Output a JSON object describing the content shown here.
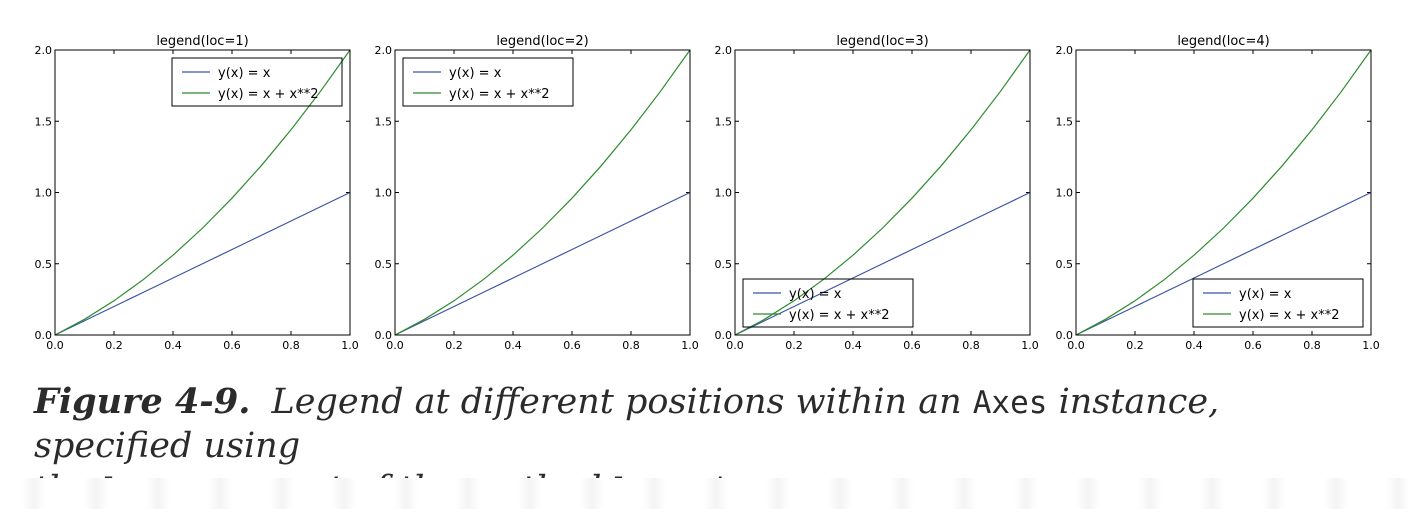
{
  "chart_data": [
    {
      "type": "line",
      "title": "legend(loc=1)",
      "legend_loc": "upper-right",
      "xlim": [
        0,
        1
      ],
      "ylim": [
        0,
        2
      ],
      "xticks": [
        "0.0",
        "0.2",
        "0.4",
        "0.6",
        "0.8",
        "1.0"
      ],
      "yticks": [
        "0.0",
        "0.5",
        "1.0",
        "1.5",
        "2.0"
      ],
      "grid": false,
      "x": [
        0,
        0.1,
        0.2,
        0.3,
        0.4,
        0.5,
        0.6,
        0.7,
        0.8,
        0.9,
        1.0
      ],
      "series": [
        {
          "name": "y(x) = x",
          "color": "#3b54a3",
          "values": [
            0,
            0.1,
            0.2,
            0.3,
            0.4,
            0.5,
            0.6,
            0.7,
            0.8,
            0.9,
            1.0
          ]
        },
        {
          "name": "y(x) = x + x**2",
          "color": "#2e8b2e",
          "values": [
            0,
            0.11,
            0.24,
            0.39,
            0.56,
            0.75,
            0.96,
            1.19,
            1.44,
            1.71,
            2.0
          ]
        }
      ]
    },
    {
      "type": "line",
      "title": "legend(loc=2)",
      "legend_loc": "upper-left",
      "xlim": [
        0,
        1
      ],
      "ylim": [
        0,
        2
      ],
      "xticks": [
        "0.0",
        "0.2",
        "0.4",
        "0.6",
        "0.8",
        "1.0"
      ],
      "yticks": [
        "0.0",
        "0.5",
        "1.0",
        "1.5",
        "2.0"
      ],
      "grid": false,
      "x": [
        0,
        0.1,
        0.2,
        0.3,
        0.4,
        0.5,
        0.6,
        0.7,
        0.8,
        0.9,
        1.0
      ],
      "series": [
        {
          "name": "y(x) = x",
          "color": "#3b54a3",
          "values": [
            0,
            0.1,
            0.2,
            0.3,
            0.4,
            0.5,
            0.6,
            0.7,
            0.8,
            0.9,
            1.0
          ]
        },
        {
          "name": "y(x) = x + x**2",
          "color": "#2e8b2e",
          "values": [
            0,
            0.11,
            0.24,
            0.39,
            0.56,
            0.75,
            0.96,
            1.19,
            1.44,
            1.71,
            2.0
          ]
        }
      ]
    },
    {
      "type": "line",
      "title": "legend(loc=3)",
      "legend_loc": "lower-left",
      "xlim": [
        0,
        1
      ],
      "ylim": [
        0,
        2
      ],
      "xticks": [
        "0.0",
        "0.2",
        "0.4",
        "0.6",
        "0.8",
        "1.0"
      ],
      "yticks": [
        "0.0",
        "0.5",
        "1.0",
        "1.5",
        "2.0"
      ],
      "grid": false,
      "x": [
        0,
        0.1,
        0.2,
        0.3,
        0.4,
        0.5,
        0.6,
        0.7,
        0.8,
        0.9,
        1.0
      ],
      "series": [
        {
          "name": "y(x) = x",
          "color": "#3b54a3",
          "values": [
            0,
            0.1,
            0.2,
            0.3,
            0.4,
            0.5,
            0.6,
            0.7,
            0.8,
            0.9,
            1.0
          ]
        },
        {
          "name": "y(x) = x + x**2",
          "color": "#2e8b2e",
          "values": [
            0,
            0.11,
            0.24,
            0.39,
            0.56,
            0.75,
            0.96,
            1.19,
            1.44,
            1.71,
            2.0
          ]
        }
      ]
    },
    {
      "type": "line",
      "title": "legend(loc=4)",
      "legend_loc": "lower-right",
      "xlim": [
        0,
        1
      ],
      "ylim": [
        0,
        2
      ],
      "xticks": [
        "0.0",
        "0.2",
        "0.4",
        "0.6",
        "0.8",
        "1.0"
      ],
      "yticks": [
        "0.0",
        "0.5",
        "1.0",
        "1.5",
        "2.0"
      ],
      "grid": false,
      "x": [
        0,
        0.1,
        0.2,
        0.3,
        0.4,
        0.5,
        0.6,
        0.7,
        0.8,
        0.9,
        1.0
      ],
      "series": [
        {
          "name": "y(x) = x",
          "color": "#3b54a3",
          "values": [
            0,
            0.1,
            0.2,
            0.3,
            0.4,
            0.5,
            0.6,
            0.7,
            0.8,
            0.9,
            1.0
          ]
        },
        {
          "name": "y(x) = x + x**2",
          "color": "#2e8b2e",
          "values": [
            0,
            0.11,
            0.24,
            0.39,
            0.56,
            0.75,
            0.96,
            1.19,
            1.44,
            1.71,
            2.0
          ]
        }
      ]
    }
  ],
  "caption": {
    "label": "Figure 4-9.",
    "text_1": "Legend at different positions within an",
    "code_1": "Axes",
    "text_2": "instance, specified using",
    "text_3": "the",
    "code_2": "loc",
    "text_4": "argument of the method",
    "code_3": "legend"
  }
}
